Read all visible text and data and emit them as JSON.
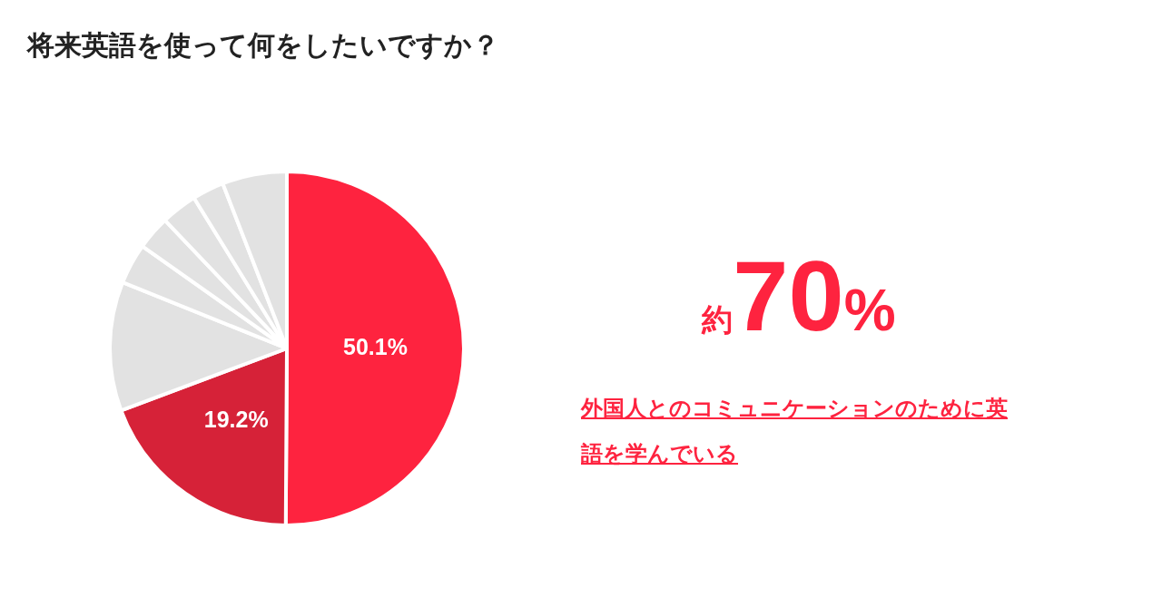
{
  "chart_data": {
    "type": "pie",
    "title": "将来英語を使って何をしたいですか？",
    "categories": [
      null,
      null,
      null,
      null,
      null,
      null,
      null,
      null
    ],
    "values": [
      50.1,
      19.2,
      11.8,
      3.7,
      3.1,
      3.3,
      2.9,
      5.9
    ],
    "colors": [
      "#fe233f",
      "#d62238",
      "#e2e2e2",
      "#e2e2e2",
      "#e2e2e2",
      "#e2e2e2",
      "#e2e2e2",
      "#e2e2e2"
    ],
    "value_labels": [
      "50.1%",
      "19.2%",
      null,
      null,
      null,
      null,
      null,
      null
    ],
    "annotations": [
      "約70%",
      "外国人とのコミュニケーションのために英語を学んでいる"
    ],
    "legend": false
  }
}
